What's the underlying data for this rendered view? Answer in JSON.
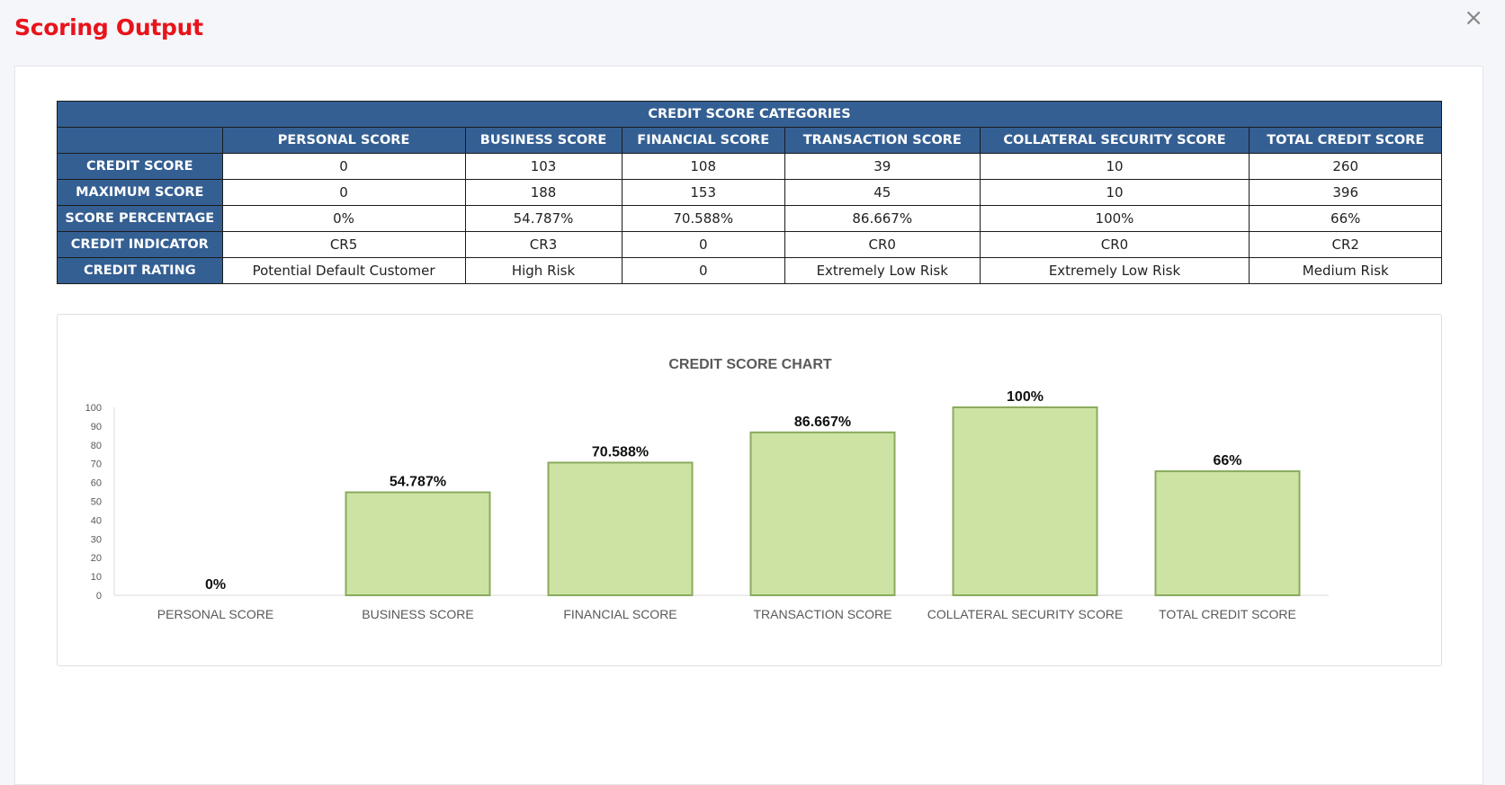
{
  "modal": {
    "title": "Scoring Output",
    "close_icon": "×"
  },
  "table": {
    "caption": "CREDIT SCORE CATEGORIES",
    "columns": [
      "PERSONAL SCORE",
      "BUSINESS SCORE",
      "FINANCIAL SCORE",
      "TRANSACTION SCORE",
      "COLLATERAL SECURITY SCORE",
      "TOTAL CREDIT SCORE"
    ],
    "rows": [
      {
        "label": "CREDIT SCORE",
        "values": [
          "0",
          "103",
          "108",
          "39",
          "10",
          "260"
        ]
      },
      {
        "label": "MAXIMUM SCORE",
        "values": [
          "0",
          "188",
          "153",
          "45",
          "10",
          "396"
        ]
      },
      {
        "label": "SCORE PERCENTAGE",
        "values": [
          "0%",
          "54.787%",
          "70.588%",
          "86.667%",
          "100%",
          "66%"
        ]
      },
      {
        "label": "CREDIT INDICATOR",
        "values": [
          "CR5",
          "CR3",
          "0",
          "CR0",
          "CR0",
          "CR2"
        ]
      },
      {
        "label": "CREDIT RATING",
        "values": [
          "Potential Default Customer",
          "High Risk",
          "0",
          "Extremely Low Risk",
          "Extremely Low Risk",
          "Medium Risk"
        ]
      }
    ]
  },
  "colors": {
    "title_red": "#e8141b",
    "header_blue": "#345f93",
    "bar_fill": "#cde3a3",
    "bar_stroke": "#8aab5e"
  },
  "chart_data": {
    "type": "bar",
    "title": "CREDIT SCORE CHART",
    "categories": [
      "PERSONAL SCORE",
      "BUSINESS SCORE",
      "FINANCIAL SCORE",
      "TRANSACTION SCORE",
      "COLLATERAL SECURITY SCORE",
      "TOTAL CREDIT SCORE"
    ],
    "values": [
      0,
      54.787,
      70.588,
      86.667,
      100,
      66
    ],
    "data_labels": [
      "0%",
      "54.787%",
      "70.588%",
      "86.667%",
      "100%",
      "66%"
    ],
    "ylim": [
      0,
      100
    ],
    "yticks": [
      0,
      10,
      20,
      30,
      40,
      50,
      60,
      70,
      80,
      90,
      100
    ],
    "xlabel": "",
    "ylabel": "",
    "grid": false,
    "legend": "none"
  }
}
